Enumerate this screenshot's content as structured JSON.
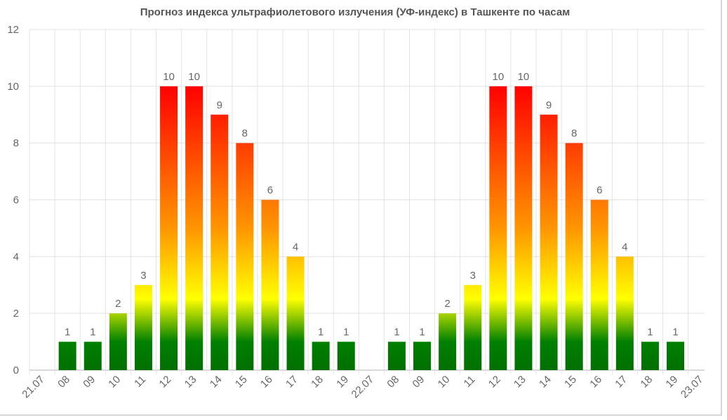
{
  "chart_data": {
    "type": "bar",
    "title": "Прогноз индекса ультрафиолетового излучения (УФ-индекс) в Ташкенте по часам",
    "xlabel": "",
    "ylabel": "",
    "ylim": [
      0,
      12
    ],
    "yticks": [
      "0",
      "2",
      "4",
      "6",
      "8",
      "10",
      "12"
    ],
    "grid": true,
    "categories": [
      "21.07",
      "08",
      "09",
      "10",
      "11",
      "12",
      "13",
      "14",
      "15",
      "16",
      "17",
      "18",
      "19",
      "22.07",
      "08",
      "09",
      "10",
      "11",
      "12",
      "13",
      "14",
      "15",
      "16",
      "17",
      "18",
      "19",
      "23.07"
    ],
    "values": [
      null,
      1,
      1,
      2,
      3,
      10,
      10,
      9,
      8,
      6,
      4,
      1,
      1,
      null,
      1,
      1,
      2,
      3,
      10,
      10,
      9,
      8,
      6,
      4,
      1,
      1,
      null
    ],
    "bar_gradient": [
      "#008000",
      "#ffff00",
      "#ff8c00",
      "#ff0000"
    ]
  }
}
